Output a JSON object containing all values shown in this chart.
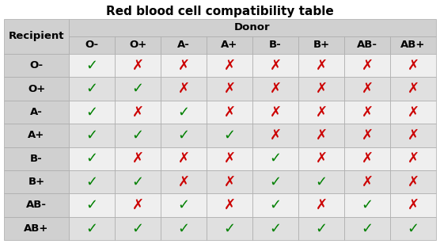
{
  "title": "Red blood cell compatibility table",
  "donor_label": "Donor",
  "recipient_label": "Recipient",
  "blood_types": [
    "O-",
    "O+",
    "A-",
    "A+",
    "B-",
    "B+",
    "AB-",
    "AB+"
  ],
  "compatibility": [
    [
      1,
      0,
      0,
      0,
      0,
      0,
      0,
      0
    ],
    [
      1,
      1,
      0,
      0,
      0,
      0,
      0,
      0
    ],
    [
      1,
      0,
      1,
      0,
      0,
      0,
      0,
      0
    ],
    [
      1,
      1,
      1,
      1,
      0,
      0,
      0,
      0
    ],
    [
      1,
      0,
      0,
      0,
      1,
      0,
      0,
      0
    ],
    [
      1,
      1,
      0,
      0,
      1,
      1,
      0,
      0
    ],
    [
      1,
      0,
      1,
      0,
      1,
      0,
      1,
      0
    ],
    [
      1,
      1,
      1,
      1,
      1,
      1,
      1,
      1
    ]
  ],
  "check_color": "#008000",
  "cross_color": "#CC0000",
  "header_bg": "#D0D0D0",
  "row_bg_light": "#EFEFEF",
  "row_bg_dark": "#E0E0E0",
  "border_color": "#AAAAAA",
  "title_fontsize": 11,
  "header_fontsize": 9.5,
  "label_fontsize": 9.5,
  "symbol_fontsize": 13
}
